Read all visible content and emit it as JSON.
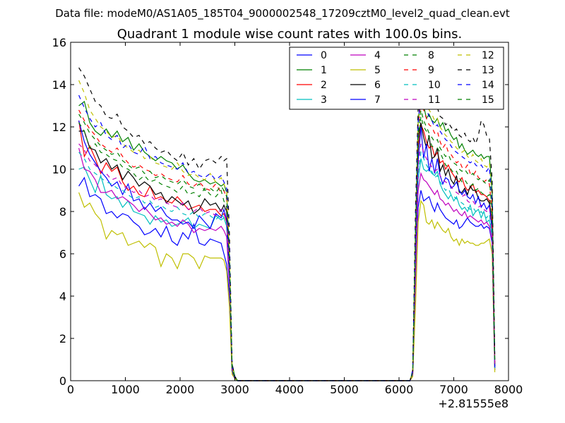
{
  "chart_data": {
    "type": "line",
    "suptitle": "Data file: modeM0/AS1A05_185T04_9000002548_17209cztM0_level2_quad_clean.evt",
    "title": "Quadrant 1 module wise count rates with 100.0s bins.",
    "xlabel": "",
    "ylabel": "",
    "x_offset_label": "+2.81555e8",
    "xlim": [
      0,
      8000
    ],
    "ylim": [
      0,
      16
    ],
    "xticks": [
      0,
      1000,
      2000,
      3000,
      4000,
      5000,
      6000,
      7000,
      8000
    ],
    "yticks": [
      0,
      2,
      4,
      6,
      8,
      10,
      12,
      14,
      16
    ],
    "legend_position": "top-right",
    "x": [
      150,
      250,
      350,
      450,
      550,
      650,
      750,
      850,
      950,
      1050,
      1150,
      1250,
      1350,
      1450,
      1550,
      1650,
      1750,
      1850,
      1950,
      2050,
      2150,
      2250,
      2350,
      2450,
      2550,
      2650,
      2750,
      2800,
      2850,
      2900,
      2950,
      3000,
      3050,
      6200,
      6250,
      6300,
      6350,
      6400,
      6450,
      6500,
      6550,
      6600,
      6650,
      6700,
      6750,
      6800,
      6850,
      6900,
      6950,
      7000,
      7050,
      7100,
      7150,
      7200,
      7250,
      7300,
      7350,
      7400,
      7450,
      7500,
      7550,
      7600,
      7650,
      7700,
      7750
    ],
    "series": [
      {
        "name": "0",
        "color": "#0000ff",
        "dash": "solid",
        "values": [
          9.2,
          9.6,
          8.7,
          8.8,
          8.6,
          7.9,
          8.0,
          7.7,
          7.9,
          7.8,
          7.5,
          7.3,
          6.9,
          7.0,
          7.2,
          6.8,
          7.3,
          6.6,
          6.4,
          7.0,
          6.7,
          7.4,
          6.5,
          6.4,
          6.7,
          6.6,
          6.5,
          6.0,
          5.5,
          4.0,
          0.4,
          0.1,
          0,
          0,
          0.3,
          4.0,
          8.2,
          9.0,
          8.5,
          8.6,
          8.7,
          8.3,
          8.0,
          8.4,
          8.1,
          7.9,
          7.7,
          7.6,
          7.5,
          7.4,
          7.6,
          7.2,
          7.3,
          7.5,
          7.7,
          7.5,
          7.4,
          7.3,
          7.3,
          7.4,
          7.2,
          7.3,
          7.2,
          6.5,
          0.5
        ]
      },
      {
        "name": "1",
        "color": "#008000",
        "dash": "solid",
        "values": [
          13.0,
          13.2,
          12.2,
          11.8,
          11.6,
          11.9,
          11.5,
          11.8,
          11.3,
          11.5,
          10.9,
          11.2,
          10.8,
          10.6,
          10.4,
          10.6,
          10.4,
          10.3,
          10.0,
          10.2,
          9.8,
          9.5,
          9.4,
          9.5,
          9.3,
          9.4,
          9.2,
          9.3,
          8.9,
          6.0,
          0.8,
          0.2,
          0,
          0,
          0.4,
          7.0,
          12.3,
          13.3,
          13.0,
          12.4,
          12.6,
          12.3,
          12.2,
          12.4,
          12.0,
          12.2,
          11.8,
          11.9,
          11.6,
          11.4,
          11.5,
          11.0,
          11.2,
          10.9,
          10.7,
          10.8,
          10.9,
          10.7,
          10.6,
          10.7,
          10.5,
          10.6,
          10.6,
          9.0,
          1.0
        ]
      },
      {
        "name": "2",
        "color": "#ff0000",
        "dash": "solid",
        "values": [
          12.3,
          10.6,
          11.1,
          10.5,
          9.8,
          10.3,
          9.9,
          10.1,
          9.4,
          9.0,
          9.2,
          8.8,
          8.7,
          9.2,
          8.6,
          8.7,
          8.5,
          8.4,
          8.7,
          8.4,
          8.1,
          8.2,
          8.3,
          8.0,
          8.1,
          8.1,
          7.8,
          7.9,
          7.5,
          5.0,
          0.6,
          0.1,
          0,
          0,
          0.4,
          6.0,
          11.0,
          12.1,
          11.8,
          11.3,
          11.0,
          11.1,
          10.6,
          10.8,
          10.3,
          10.4,
          10.0,
          10.2,
          9.9,
          9.7,
          9.5,
          9.4,
          9.6,
          9.2,
          9.0,
          9.1,
          9.3,
          8.9,
          9.0,
          8.8,
          8.8,
          8.7,
          8.5,
          7.5,
          0.8
        ]
      },
      {
        "name": "3",
        "color": "#00bfbf",
        "dash": "solid",
        "values": [
          10.0,
          10.1,
          9.5,
          8.9,
          9.7,
          8.8,
          8.6,
          8.7,
          8.2,
          8.5,
          8.0,
          7.9,
          7.8,
          7.4,
          7.8,
          7.5,
          7.6,
          7.3,
          7.4,
          7.5,
          7.7,
          7.2,
          7.4,
          7.3,
          7.2,
          7.8,
          7.6,
          7.7,
          7.3,
          5.0,
          0.5,
          0.1,
          0,
          0,
          0.3,
          5.0,
          9.5,
          10.5,
          10.0,
          9.9,
          10.0,
          9.8,
          9.7,
          9.9,
          9.3,
          9.0,
          8.8,
          8.6,
          8.8,
          8.5,
          8.7,
          8.3,
          8.1,
          8.2,
          8.0,
          8.3,
          7.8,
          8.0,
          8.1,
          7.7,
          8.0,
          7.5,
          7.6,
          6.8,
          0.6
        ]
      },
      {
        "name": "4",
        "color": "#bf00bf",
        "dash": "solid",
        "values": [
          11.0,
          10.0,
          9.9,
          9.5,
          8.9,
          8.9,
          9.0,
          8.6,
          8.7,
          8.5,
          8.3,
          8.0,
          8.2,
          7.9,
          7.6,
          7.7,
          7.4,
          7.5,
          7.3,
          7.6,
          7.4,
          7.0,
          7.2,
          7.1,
          7.2,
          7.1,
          7.3,
          7.1,
          6.8,
          4.5,
          0.4,
          0.1,
          0,
          0,
          0.3,
          4.5,
          9.0,
          9.8,
          9.5,
          9.4,
          9.2,
          9.0,
          8.8,
          9.0,
          8.6,
          8.5,
          8.3,
          8.4,
          8.2,
          8.0,
          8.1,
          7.9,
          7.8,
          8.0,
          7.7,
          7.8,
          7.7,
          7.6,
          7.5,
          7.6,
          7.4,
          7.5,
          7.3,
          6.6,
          0.5
        ]
      },
      {
        "name": "5",
        "color": "#bfbf00",
        "dash": "solid",
        "values": [
          8.9,
          8.2,
          8.4,
          7.9,
          7.6,
          6.7,
          7.1,
          6.9,
          7.0,
          6.4,
          6.5,
          6.6,
          6.3,
          6.5,
          6.3,
          5.4,
          6.0,
          5.8,
          5.3,
          6.0,
          6.0,
          5.8,
          5.3,
          5.9,
          5.8,
          5.8,
          5.8,
          5.7,
          5.2,
          3.5,
          0.3,
          0.1,
          0,
          0,
          0.2,
          3.5,
          7.5,
          8.5,
          8.3,
          7.5,
          7.4,
          7.6,
          7.2,
          7.5,
          7.3,
          7.1,
          7.0,
          7.2,
          6.8,
          6.6,
          6.7,
          6.4,
          6.7,
          6.5,
          6.6,
          6.5,
          6.5,
          6.4,
          6.4,
          6.5,
          6.5,
          6.6,
          6.7,
          6.0,
          0.4
        ]
      },
      {
        "name": "6",
        "color": "#000000",
        "dash": "solid",
        "values": [
          11.8,
          11.8,
          11.0,
          10.9,
          10.3,
          10.5,
          10.0,
          10.2,
          9.5,
          9.9,
          9.6,
          9.2,
          9.4,
          9.2,
          8.8,
          8.9,
          8.4,
          8.7,
          8.5,
          8.3,
          8.5,
          7.9,
          8.1,
          8.6,
          8.3,
          8.4,
          8.0,
          8.3,
          8.0,
          5.5,
          0.6,
          0.1,
          0,
          0,
          0.4,
          6.5,
          11.5,
          12.2,
          11.5,
          11.0,
          11.6,
          10.5,
          10.6,
          11.0,
          9.9,
          10.2,
          9.7,
          10.0,
          9.5,
          9.3,
          9.7,
          8.9,
          8.9,
          9.1,
          8.8,
          9.2,
          9.0,
          9.0,
          8.6,
          8.5,
          8.5,
          8.6,
          8.4,
          7.3,
          0.7
        ]
      },
      {
        "name": "7",
        "color": "#0000ff",
        "dash": "solid",
        "values": [
          12.3,
          11.3,
          10.7,
          10.3,
          9.9,
          9.6,
          9.2,
          9.4,
          8.8,
          9.3,
          8.5,
          8.6,
          8.1,
          8.4,
          8.0,
          8.2,
          7.8,
          7.6,
          7.6,
          7.4,
          7.5,
          7.2,
          7.8,
          7.5,
          7.2,
          7.9,
          7.7,
          8.1,
          7.6,
          5.0,
          0.5,
          0.1,
          0,
          0,
          0.4,
          6.0,
          10.4,
          12.0,
          10.5,
          11.2,
          9.9,
          10.5,
          9.8,
          10.5,
          9.7,
          9.3,
          9.6,
          9.5,
          9.1,
          9.2,
          9.4,
          9.0,
          8.8,
          9.0,
          8.7,
          8.6,
          8.8,
          8.4,
          8.7,
          8.2,
          8.4,
          8.1,
          8.3,
          7.1,
          0.6
        ]
      },
      {
        "name": "8",
        "color": "#008000",
        "dash": "dashed",
        "values": [
          12.2,
          11.8,
          11.0,
          11.2,
          10.8,
          10.7,
          10.5,
          10.4,
          10.1,
          10.0,
          9.8,
          9.5,
          9.7,
          9.4,
          9.5,
          9.3,
          9.2,
          9.1,
          8.9,
          9.2,
          8.8,
          8.9,
          8.7,
          9.1,
          8.8,
          8.7,
          9.0,
          8.5,
          8.2,
          5.5,
          0.6,
          0.1,
          0,
          0,
          0.4,
          6.5,
          11.3,
          12.5,
          12.0,
          11.8,
          11.5,
          11.1,
          11.0,
          11.0,
          10.8,
          10.5,
          10.2,
          10.1,
          10.0,
          9.8,
          9.9,
          9.6,
          9.4,
          9.5,
          9.3,
          9.2,
          9.3,
          9.0,
          9.1,
          8.9,
          8.8,
          8.7,
          8.8,
          7.5,
          0.8
        ]
      },
      {
        "name": "9",
        "color": "#ff0000",
        "dash": "dashed",
        "values": [
          12.8,
          12.3,
          11.9,
          11.6,
          11.2,
          11.0,
          10.8,
          11.0,
          10.6,
          10.3,
          10.1,
          10.2,
          10.0,
          9.9,
          9.7,
          9.8,
          9.6,
          9.5,
          9.4,
          9.7,
          9.3,
          9.2,
          9.4,
          9.1,
          9.0,
          9.3,
          8.9,
          9.0,
          8.6,
          5.8,
          0.6,
          0.1,
          0,
          0,
          0.4,
          7.0,
          12.0,
          13.2,
          12.8,
          12.4,
          12.1,
          12.0,
          11.7,
          11.8,
          11.3,
          11.0,
          11.2,
          10.8,
          10.7,
          10.5,
          10.3,
          10.4,
          10.1,
          10.0,
          10.2,
          9.8,
          9.7,
          9.9,
          9.6,
          9.5,
          9.4,
          9.5,
          9.3,
          8.0,
          0.9
        ]
      },
      {
        "name": "10",
        "color": "#00bfbf",
        "dash": "dashed",
        "values": [
          10.8,
          10.5,
          10.0,
          9.8,
          9.6,
          9.4,
          9.3,
          9.1,
          9.0,
          8.8,
          8.6,
          8.7,
          8.4,
          8.5,
          8.2,
          8.3,
          8.1,
          8.0,
          8.2,
          7.9,
          7.8,
          8.0,
          7.7,
          7.9,
          7.8,
          7.6,
          7.9,
          7.7,
          7.4,
          5.0,
          0.5,
          0.1,
          0,
          0,
          0.3,
          5.5,
          9.8,
          10.8,
          10.5,
          10.2,
          10.0,
          9.9,
          9.6,
          9.7,
          9.4,
          9.2,
          9.0,
          9.1,
          8.8,
          8.7,
          8.6,
          8.5,
          8.4,
          8.3,
          8.2,
          8.1,
          8.2,
          8.0,
          7.9,
          8.0,
          7.8,
          7.7,
          7.9,
          6.8,
          0.6
        ]
      },
      {
        "name": "11",
        "color": "#bf00bf",
        "dash": "dashed",
        "values": [
          11.2,
          10.9,
          10.4,
          10.2,
          9.9,
          9.8,
          9.5,
          9.6,
          9.2,
          9.1,
          8.9,
          9.0,
          8.7,
          8.8,
          8.5,
          8.6,
          8.4,
          8.3,
          8.2,
          8.4,
          8.1,
          8.0,
          8.2,
          7.9,
          8.0,
          7.8,
          8.1,
          7.9,
          7.6,
          5.2,
          0.5,
          0.1,
          0,
          0,
          0.3,
          5.8,
          10.2,
          11.2,
          10.8,
          10.5,
          10.3,
          10.1,
          9.9,
          10.0,
          9.7,
          9.5,
          9.4,
          9.3,
          9.2,
          9.0,
          8.9,
          8.8,
          8.7,
          8.8,
          8.5,
          8.4,
          8.5,
          8.3,
          8.2,
          8.3,
          8.1,
          8.0,
          8.2,
          7.0,
          0.7
        ]
      },
      {
        "name": "12",
        "color": "#bfbf00",
        "dash": "dashed",
        "values": [
          14.2,
          13.6,
          12.8,
          12.4,
          12.0,
          11.8,
          11.5,
          11.6,
          11.2,
          11.0,
          10.8,
          10.9,
          10.5,
          10.6,
          10.3,
          10.2,
          10.1,
          10.0,
          10.3,
          9.9,
          9.7,
          9.8,
          9.6,
          9.5,
          9.8,
          9.4,
          9.6,
          9.3,
          9.0,
          6.0,
          0.7,
          0.1,
          0,
          0,
          0.5,
          7.5,
          12.5,
          14.0,
          13.5,
          13.2,
          12.8,
          12.6,
          12.3,
          12.4,
          12.0,
          11.8,
          11.6,
          11.5,
          11.3,
          11.2,
          11.0,
          10.9,
          10.8,
          10.9,
          10.6,
          10.5,
          10.7,
          10.4,
          10.3,
          10.5,
          10.2,
          10.1,
          10.3,
          8.6,
          1.0
        ]
      },
      {
        "name": "13",
        "color": "#000000",
        "dash": "dashed",
        "values": [
          14.8,
          14.4,
          13.8,
          13.2,
          13.0,
          12.5,
          12.4,
          12.6,
          12.0,
          11.8,
          11.5,
          11.6,
          11.2,
          11.3,
          11.0,
          10.8,
          10.9,
          10.6,
          10.4,
          10.8,
          10.2,
          10.5,
          10.0,
          10.4,
          10.5,
          10.3,
          10.6,
          10.4,
          10.5,
          7.0,
          0.8,
          0.2,
          0,
          0,
          0.5,
          8.0,
          13.0,
          14.2,
          13.8,
          13.5,
          13.3,
          13.0,
          12.8,
          12.9,
          12.5,
          12.4,
          12.1,
          12.2,
          12.0,
          11.8,
          11.9,
          11.6,
          11.5,
          11.7,
          11.4,
          11.3,
          11.5,
          11.2,
          11.6,
          12.3,
          12.1,
          11.6,
          11.5,
          9.5,
          1.1
        ]
      },
      {
        "name": "14",
        "color": "#0000ff",
        "dash": "dashed",
        "values": [
          13.5,
          12.9,
          12.4,
          12.0,
          12.2,
          11.6,
          11.4,
          11.6,
          11.0,
          11.2,
          10.8,
          10.7,
          11.1,
          10.5,
          10.6,
          10.3,
          10.2,
          10.1,
          10.0,
          10.3,
          9.8,
          9.9,
          9.7,
          9.6,
          9.8,
          9.5,
          9.7,
          9.4,
          9.1,
          6.2,
          0.7,
          0.1,
          0,
          0,
          0.5,
          7.2,
          12.2,
          13.6,
          13.0,
          12.8,
          12.5,
          12.3,
          12.0,
          12.1,
          11.8,
          11.6,
          11.4,
          11.3,
          11.1,
          10.9,
          10.8,
          10.7,
          10.6,
          10.5,
          10.4,
          10.3,
          10.4,
          10.2,
          10.1,
          10.2,
          10.0,
          9.9,
          10.1,
          8.4,
          0.9
        ]
      },
      {
        "name": "15",
        "color": "#008000",
        "dash": "dashed",
        "values": [
          12.6,
          12.2,
          11.7,
          11.4,
          11.1,
          10.9,
          10.7,
          10.8,
          10.4,
          10.2,
          10.0,
          10.1,
          9.8,
          9.9,
          9.6,
          9.7,
          9.5,
          9.4,
          9.3,
          9.5,
          9.2,
          9.1,
          9.3,
          9.0,
          9.1,
          8.9,
          9.2,
          9.0,
          8.7,
          5.8,
          0.6,
          0.1,
          0,
          0,
          0.4,
          6.8,
          11.6,
          12.8,
          12.3,
          12.0,
          11.7,
          11.5,
          11.3,
          11.4,
          11.0,
          10.8,
          10.6,
          10.7,
          10.4,
          10.3,
          10.2,
          10.0,
          9.9,
          10.0,
          9.8,
          9.7,
          9.8,
          9.6,
          9.5,
          9.6,
          9.4,
          9.3,
          9.5,
          8.0,
          0.8
        ]
      }
    ]
  }
}
